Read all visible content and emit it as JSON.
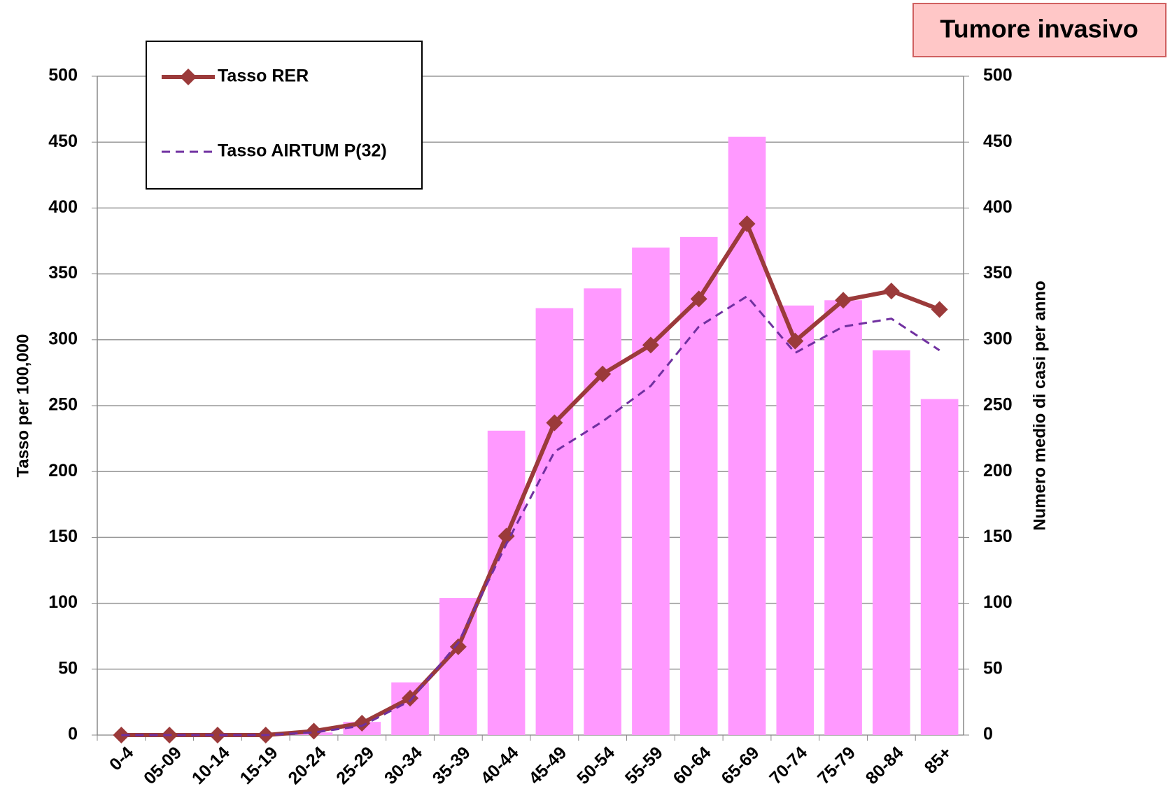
{
  "chart_data": {
    "type": "combo",
    "title": "Tumore invasivo",
    "ylabel": "Tasso per 100,000",
    "y2label": "Numero medio di casi per anno",
    "categories": [
      "0-4",
      "05-09",
      "10-14",
      "15-19",
      "20-24",
      "25-29",
      "30-34",
      "35-39",
      "40-44",
      "45-49",
      "50-54",
      "55-59",
      "60-64",
      "65-69",
      "70-74",
      "75-79",
      "80-84",
      "85+"
    ],
    "series": [
      {
        "kind": "bar",
        "axis": "y2",
        "color": "#ff99ff",
        "values": [
          0,
          0,
          0,
          0,
          2,
          10,
          40,
          104,
          231,
          324,
          339,
          370,
          378,
          454,
          326,
          330,
          292,
          255
        ]
      },
      {
        "name": "Tasso RER",
        "kind": "line",
        "axis": "y",
        "color": "#9b3a3a",
        "marker": "diamond",
        "values": [
          0,
          0,
          0,
          0,
          3,
          9,
          28,
          67,
          151,
          237,
          274,
          296,
          331,
          388,
          299,
          330,
          337,
          323
        ]
      },
      {
        "name": "Tasso AIRTUM P(32)",
        "kind": "line",
        "axis": "y",
        "color": "#7030a0",
        "dashed": true,
        "values": [
          0,
          0,
          0,
          0,
          2,
          7,
          26,
          70,
          145,
          215,
          238,
          265,
          310,
          333,
          290,
          310,
          316,
          292
        ]
      }
    ],
    "ylim": [
      0,
      500
    ],
    "yticks": [
      0,
      50,
      100,
      150,
      200,
      250,
      300,
      350,
      400,
      450,
      500
    ],
    "y2lim": [
      0,
      500
    ],
    "y2ticks": [
      0,
      50,
      100,
      150,
      200,
      250,
      300,
      350,
      400,
      450,
      500
    ],
    "grid": true,
    "legend": "top-left"
  }
}
